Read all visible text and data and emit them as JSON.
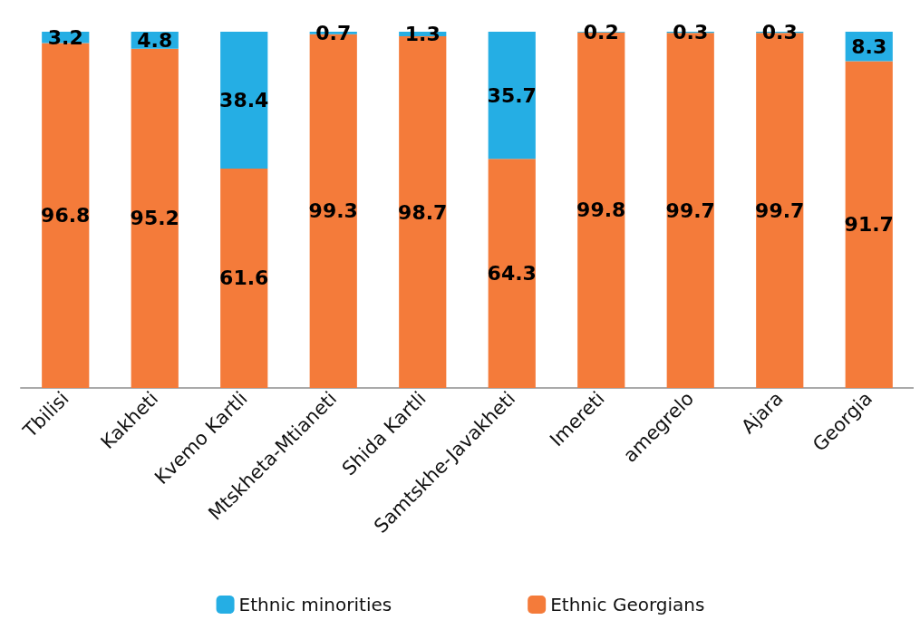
{
  "chart_data": {
    "type": "bar",
    "stacked": true,
    "data_labels": true,
    "legend": "bottom",
    "categories": [
      "Tbilisi",
      "Kakheti",
      "Kvemo Kartli",
      "Mtskheta-Mtianeti",
      "Shida Kartli",
      "Samtskhe-Javakheti",
      "Imereti",
      "amegrelo",
      "Ajara",
      "Georgia"
    ],
    "series": [
      {
        "name": "Ethnic Georgians",
        "color": "#f47b3a",
        "values": [
          96.8,
          95.2,
          61.6,
          99.3,
          98.7,
          64.3,
          99.8,
          99.7,
          99.7,
          91.7
        ]
      },
      {
        "name": "Ethnic minorities",
        "color": "#25aee4",
        "values": [
          3.2,
          4.8,
          38.4,
          0.7,
          1.3,
          35.7,
          0.2,
          0.3,
          0.3,
          8.3
        ]
      }
    ]
  }
}
